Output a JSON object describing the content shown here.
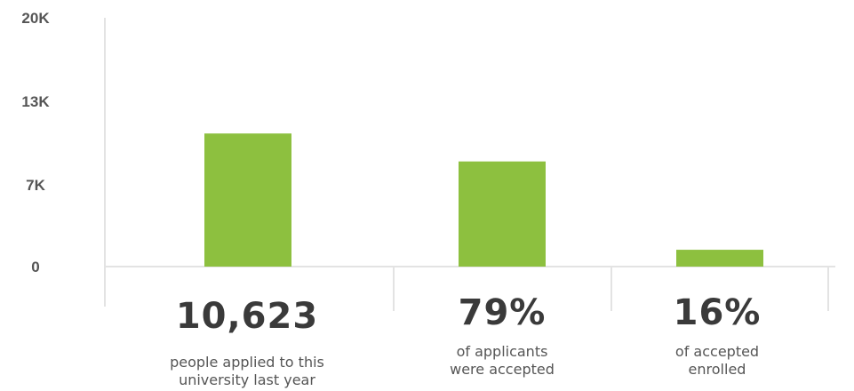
{
  "chart_data": {
    "type": "bar",
    "categories": [
      "people applied to this university last year",
      "of applicants were accepted",
      "of accepted enrolled"
    ],
    "values": [
      10623,
      8392,
      1343
    ],
    "y_ticks": [
      "20K",
      "13K",
      "7K",
      "0"
    ],
    "ylim": [
      0,
      20000
    ],
    "grid": false,
    "bar_color": "#8dc03f",
    "stats": [
      {
        "value": "10,623",
        "caption": "people applied to this\nuniversity last year"
      },
      {
        "value": "79%",
        "caption": "of applicants\nwere accepted"
      },
      {
        "value": "16%",
        "caption": "of accepted\nenrolled"
      }
    ]
  }
}
